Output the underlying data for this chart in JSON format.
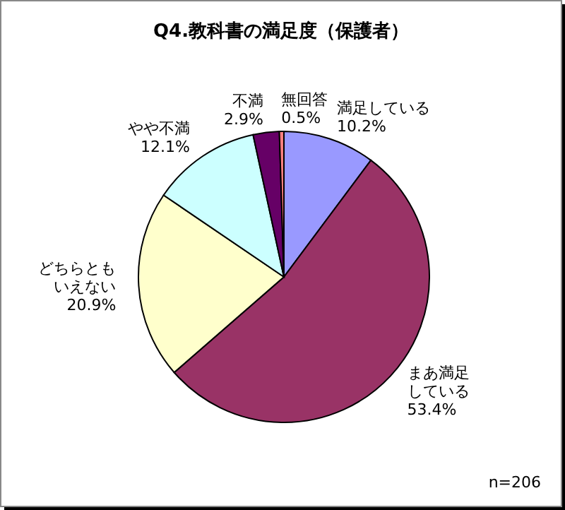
{
  "chart_data": {
    "type": "pie",
    "title": "Q4.教科書の満足度（保護者）",
    "categories": [
      "満足している",
      "まあ満足している",
      "どちらともいえない",
      "やや不満",
      "不満",
      "無回答"
    ],
    "values": [
      10.2,
      53.4,
      20.9,
      12.1,
      2.9,
      0.5
    ],
    "value_labels": [
      "10.2%",
      "53.4%",
      "20.9%",
      "12.1%",
      "2.9%",
      "0.5%"
    ],
    "colors": [
      "#9999ff",
      "#993366",
      "#ffffcc",
      "#ccffff",
      "#660066",
      "#ff8080"
    ],
    "annotations": [
      "n=206"
    ],
    "legend": false
  }
}
